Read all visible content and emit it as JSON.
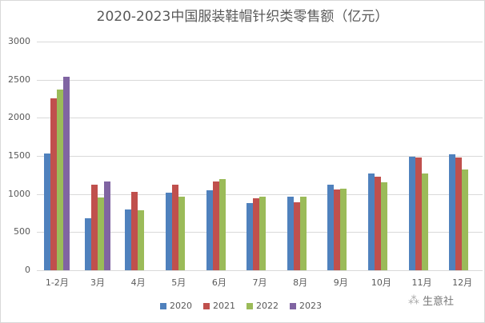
{
  "chart_data": {
    "type": "bar",
    "title": "2020-2023中国服装鞋帽针织类零售额（亿元）",
    "xlabel": "",
    "ylabel": "",
    "ylim": [
      0,
      3000
    ],
    "yticks": [
      0,
      500,
      1000,
      1500,
      2000,
      2500,
      3000
    ],
    "grid": true,
    "legend_position": "bottom",
    "categories": [
      "1-2月",
      "3月",
      "4月",
      "5月",
      "6月",
      "7月",
      "8月",
      "9月",
      "10月",
      "11月",
      "12月"
    ],
    "series": [
      {
        "name": "2020",
        "color": "#4f81bd",
        "values": [
          1530,
          685,
          800,
          1020,
          1050,
          880,
          965,
          1125,
          1270,
          1490,
          1520
        ]
      },
      {
        "name": "2021",
        "color": "#c0504d",
        "values": [
          2260,
          1125,
          1030,
          1125,
          1165,
          945,
          895,
          1060,
          1230,
          1480,
          1480
        ]
      },
      {
        "name": "2022",
        "color": "#9bbb59",
        "values": [
          2370,
          955,
          790,
          960,
          1200,
          960,
          960,
          1070,
          1155,
          1270,
          1320
        ]
      },
      {
        "name": "2023",
        "color": "#8064a2",
        "values": [
          2540,
          1165,
          null,
          null,
          null,
          null,
          null,
          null,
          null,
          null,
          null
        ]
      }
    ]
  },
  "watermark": {
    "icon": "wechat-icon",
    "text": "生意社"
  }
}
